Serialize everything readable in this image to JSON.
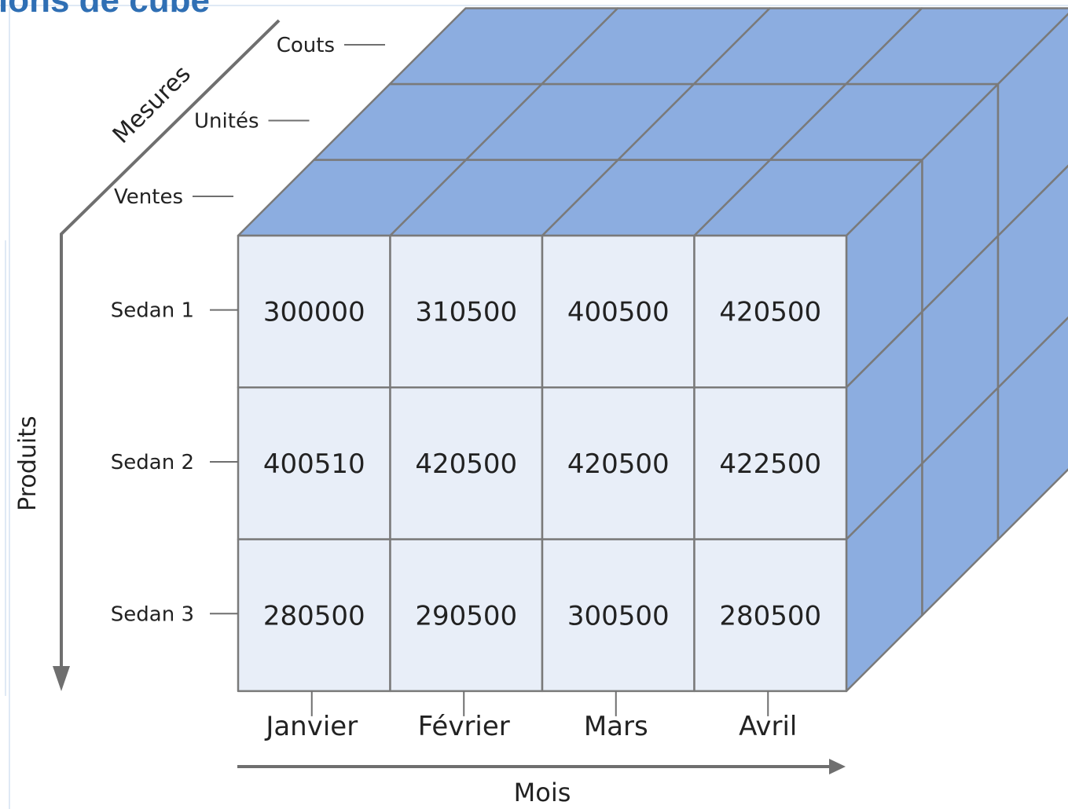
{
  "title": "ions de cube",
  "axes": {
    "measures_label": "Mesures",
    "products_label": "Produits",
    "months_label": "Mois"
  },
  "measures": [
    "Ventes",
    "Unités",
    "Couts"
  ],
  "products": [
    "Sedan 1",
    "Sedan 2",
    "Sedan 3"
  ],
  "months": [
    "Janvier",
    "Février",
    "Mars",
    "Avril"
  ],
  "values": [
    [
      "300000",
      "310500",
      "400500",
      "420500"
    ],
    [
      "400510",
      "420500",
      "420500",
      "422500"
    ],
    [
      "280500",
      "290500",
      "300500",
      "280500"
    ]
  ],
  "colors": {
    "front_face": "#e8eef8",
    "top_face": "#8cade0",
    "side_face": "#8cade0",
    "grid": "#7a7a7a",
    "axis": "#6f6f6f",
    "title": "#2f6fb4",
    "text": "#222222"
  }
}
